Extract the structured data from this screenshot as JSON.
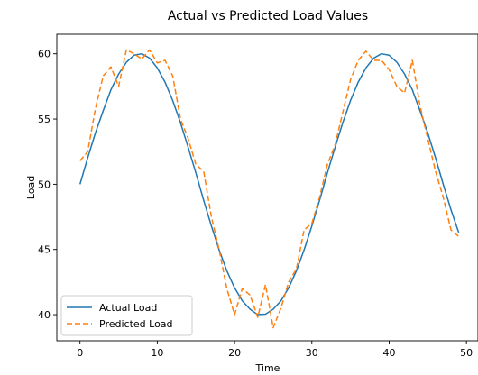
{
  "chart_data": {
    "type": "line",
    "title": "Actual vs Predicted Load Values",
    "xlabel": "Time",
    "ylabel": "Load",
    "xlim": [
      -3,
      51.5
    ],
    "ylim": [
      38.0,
      61.5
    ],
    "xticks": [
      0,
      10,
      20,
      30,
      40,
      50
    ],
    "yticks": [
      40,
      45,
      50,
      55,
      60
    ],
    "grid": false,
    "legend_position": "lower-left",
    "x": [
      0,
      1,
      2,
      3,
      4,
      5,
      6,
      7,
      8,
      9,
      10,
      11,
      12,
      13,
      14,
      15,
      16,
      17,
      18,
      19,
      20,
      21,
      22,
      23,
      24,
      25,
      26,
      27,
      28,
      29,
      30,
      31,
      32,
      33,
      34,
      35,
      36,
      37,
      38,
      39,
      40,
      41,
      42,
      43,
      44,
      45,
      46,
      47,
      48,
      49
    ],
    "series": [
      {
        "name": "Actual Load",
        "color": "#1f77b4",
        "style": "solid",
        "values": [
          50.0,
          52.03,
          53.94,
          55.63,
          57.24,
          58.45,
          59.35,
          59.89,
          60.0,
          59.67,
          58.92,
          57.83,
          56.41,
          54.72,
          52.82,
          50.85,
          48.77,
          46.8,
          44.97,
          43.36,
          42.06,
          41.06,
          40.42,
          40.0,
          40.04,
          40.42,
          41.06,
          42.06,
          43.36,
          44.97,
          46.8,
          48.77,
          50.85,
          52.82,
          54.72,
          56.41,
          57.83,
          58.92,
          59.67,
          60.0,
          59.89,
          59.35,
          58.45,
          57.24,
          55.63,
          53.94,
          52.03,
          50.0,
          48.05,
          46.3
        ]
      },
      {
        "name": "Predicted Load",
        "color": "#ff7f0e",
        "style": "dashed",
        "values": [
          51.8,
          52.5,
          55.8,
          58.3,
          59.0,
          57.5,
          60.3,
          60.0,
          59.6,
          60.3,
          59.3,
          59.5,
          58.3,
          55.0,
          53.5,
          51.5,
          51.0,
          47.5,
          45.0,
          42.0,
          40.0,
          42.0,
          41.5,
          39.8,
          42.3,
          39.0,
          40.5,
          42.5,
          43.5,
          46.5,
          47.0,
          49.0,
          51.5,
          53.0,
          55.5,
          58.0,
          59.5,
          60.2,
          59.5,
          59.5,
          58.8,
          57.5,
          57.0,
          59.5,
          56.0,
          53.5,
          51.0,
          49.0,
          46.5,
          46.0
        ]
      }
    ]
  }
}
